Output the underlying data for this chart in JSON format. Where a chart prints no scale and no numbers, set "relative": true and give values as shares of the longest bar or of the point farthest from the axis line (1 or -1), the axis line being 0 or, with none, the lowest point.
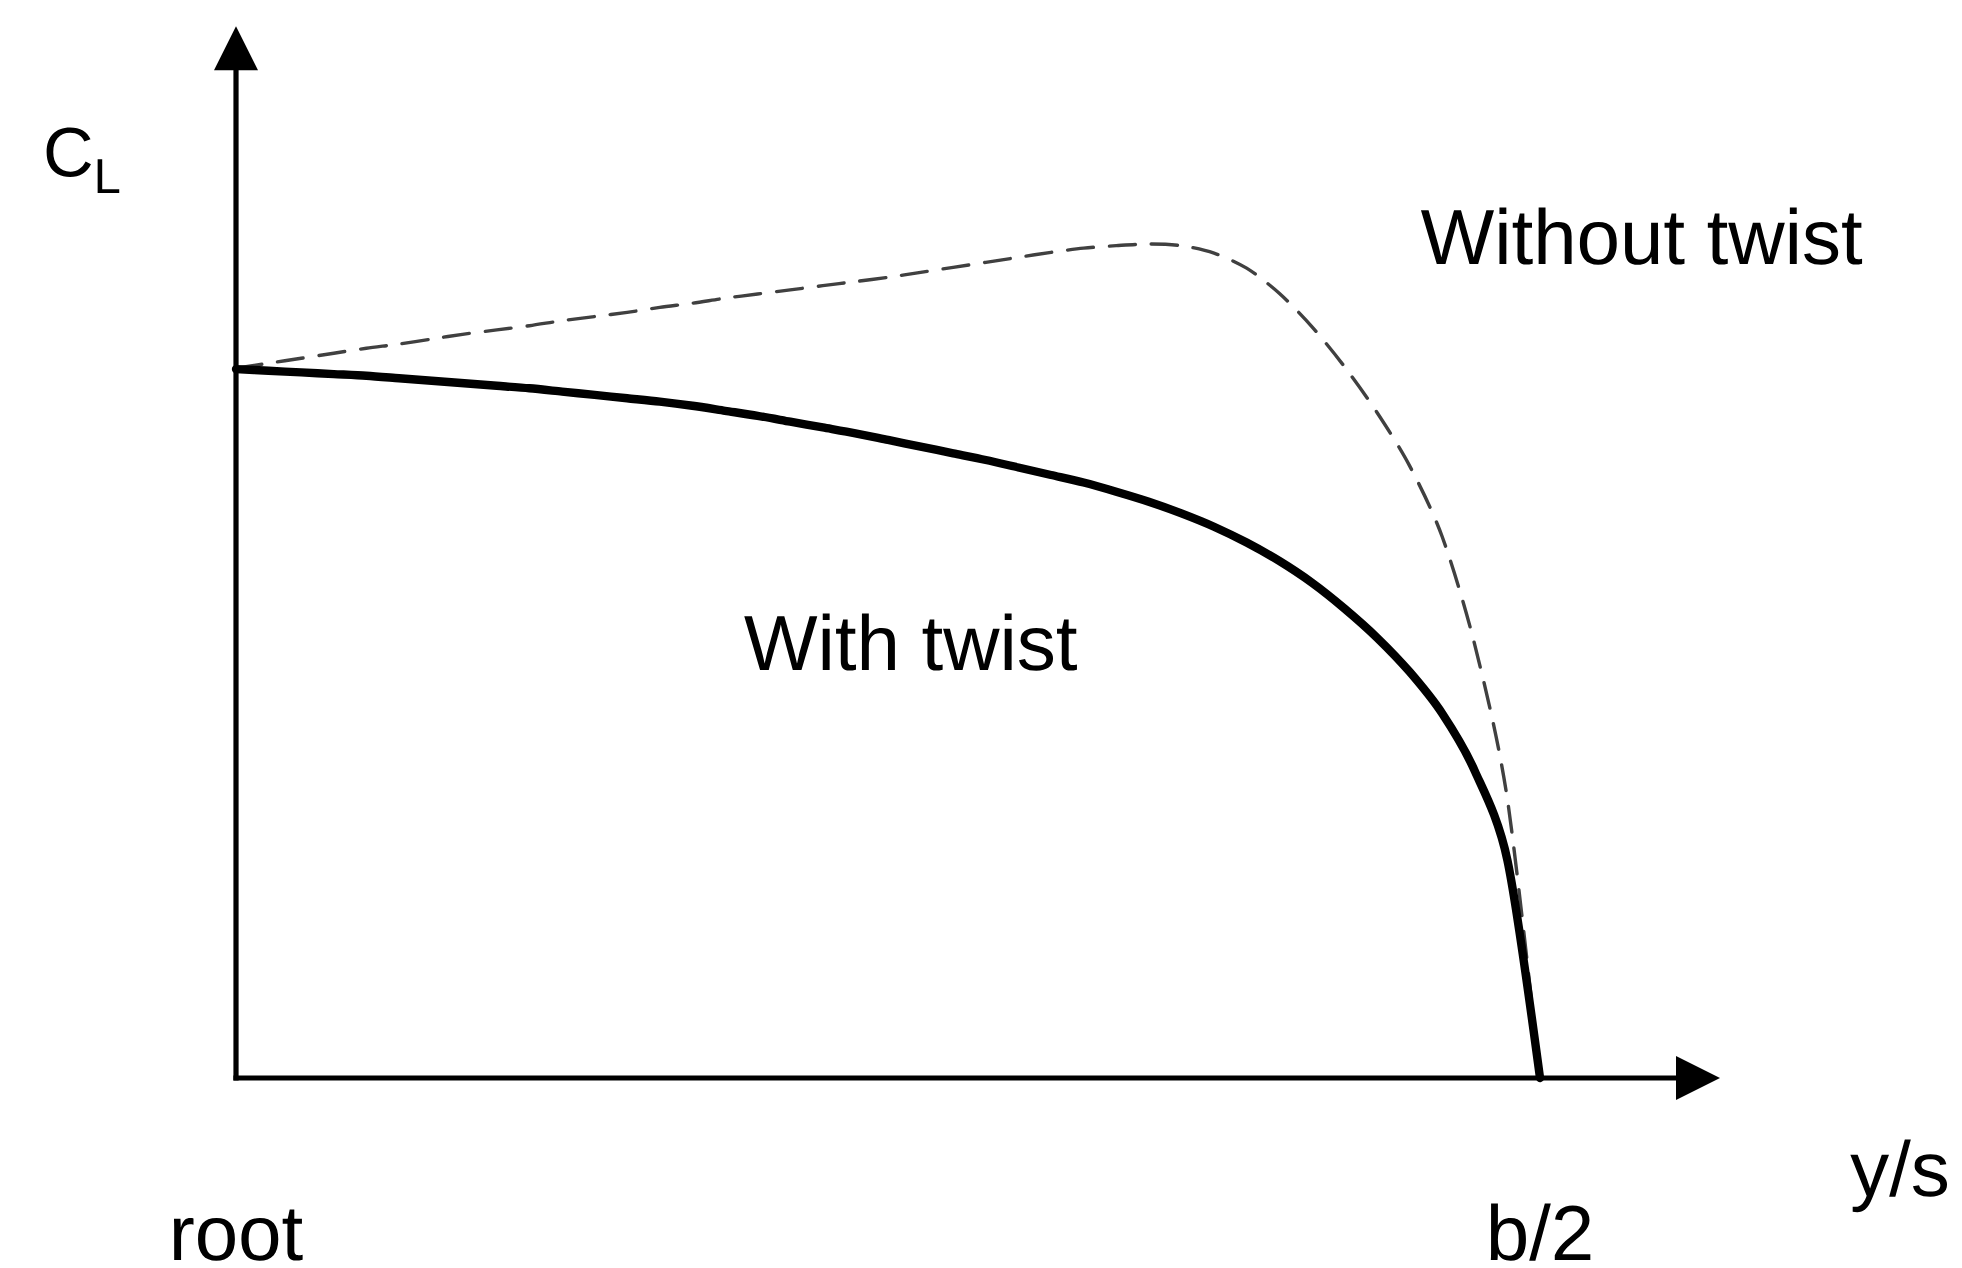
{
  "chart_data": {
    "type": "line",
    "xlabel": "y/s",
    "ylabel": "C$_{L}$",
    "relative": true,
    "marker": "none",
    "categories": [
      "root",
      null,
      null,
      null,
      null,
      null,
      null,
      null,
      null,
      null,
      null,
      null,
      null,
      null,
      null,
      null,
      null,
      null,
      null,
      null,
      null,
      null,
      null,
      null,
      null,
      null,
      null,
      null,
      null,
      null,
      null,
      null,
      null,
      null,
      null,
      null,
      null,
      null,
      null,
      null,
      "b/2"
    ],
    "series": [
      {
        "name": "Without twist",
        "color": "#404040",
        "line_style": "dashed",
        "values": [
          0.851,
          0.857,
          0.863,
          0.869,
          0.875,
          0.88,
          0.886,
          0.892,
          0.897,
          0.902,
          0.908,
          0.913,
          0.918,
          0.924,
          0.929,
          0.935,
          0.94,
          0.945,
          0.95,
          0.955,
          0.96,
          0.966,
          0.972,
          0.978,
          0.984,
          0.99,
          0.995,
          0.998,
          1,
          0.998,
          0.989,
          0.971,
          0.941,
          0.901,
          0.853,
          0.798,
          0.734,
          0.649,
          0.519,
          0.334,
          0
        ]
      },
      {
        "name": "With twist",
        "color": "#000000",
        "line_style": "solid",
        "values": [
          0.85,
          0.848,
          0.846,
          0.844,
          0.842,
          0.839,
          0.836,
          0.833,
          0.83,
          0.827,
          0.823,
          0.819,
          0.815,
          0.811,
          0.806,
          0.8,
          0.794,
          0.787,
          0.78,
          0.773,
          0.765,
          0.757,
          0.749,
          0.741,
          0.732,
          0.723,
          0.714,
          0.703,
          0.691,
          0.677,
          0.661,
          0.642,
          0.62,
          0.594,
          0.563,
          0.528,
          0.487,
          0.437,
          0.368,
          0.261,
          0
        ]
      }
    ]
  }
}
